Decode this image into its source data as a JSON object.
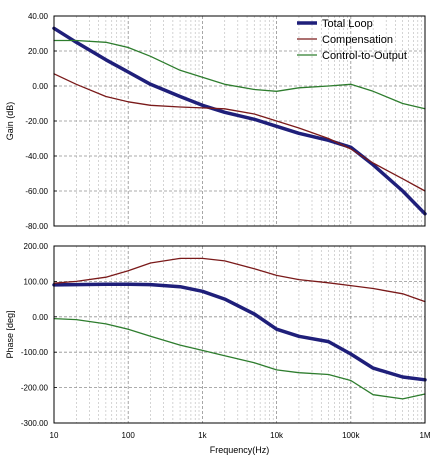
{
  "chart_data": [
    {
      "type": "line",
      "panel": "gain",
      "ylabel": "Gain (dB)",
      "xscale": "log",
      "xlim": [
        10,
        1000000
      ],
      "ylim": [
        -80,
        40
      ],
      "grid": true,
      "legend": "top-right",
      "ytick_labels": [
        "40.00",
        "20.00",
        "0.00",
        "-20.00",
        "-40.00",
        "-60.00",
        "-80.00"
      ],
      "ytick_values": [
        40,
        20,
        0,
        -20,
        -40,
        -60,
        -80
      ],
      "series": [
        {
          "name": "Total Loop",
          "color": "#1f1f7a",
          "x": [
            10,
            20,
            50,
            100,
            200,
            500,
            1000,
            2000,
            5000,
            10000,
            20000,
            50000,
            100000,
            200000,
            500000,
            1000000
          ],
          "y": [
            33,
            25,
            15,
            8,
            1,
            -6,
            -11,
            -15,
            -19,
            -23,
            -27,
            -31,
            -35,
            -45,
            -60,
            -73
          ]
        },
        {
          "name": "Compensation",
          "color": "#7a1a1a",
          "x": [
            10,
            20,
            50,
            100,
            200,
            500,
            1000,
            2000,
            5000,
            10000,
            20000,
            50000,
            100000,
            200000,
            500000,
            1000000
          ],
          "y": [
            7,
            1,
            -6,
            -9,
            -11,
            -12,
            -12.5,
            -13,
            -16,
            -20,
            -24,
            -30,
            -36,
            -44,
            -53,
            -60
          ]
        },
        {
          "name": "Control-to-Output",
          "color": "#2e7d2e",
          "x": [
            10,
            20,
            50,
            100,
            200,
            500,
            1000,
            2000,
            5000,
            10000,
            20000,
            50000,
            100000,
            200000,
            500000,
            1000000
          ],
          "y": [
            26,
            26,
            25,
            22,
            17,
            9,
            5,
            1,
            -2,
            -3,
            -1,
            0,
            1,
            -3,
            -10,
            -13
          ]
        }
      ]
    },
    {
      "type": "line",
      "panel": "phase",
      "xlabel": "Frequency(Hz)",
      "ylabel": "Phase [deg]",
      "xscale": "log",
      "xlim": [
        10,
        1000000
      ],
      "ylim": [
        -300,
        200
      ],
      "grid": true,
      "xtick_labels": [
        "10",
        "100",
        "1k",
        "10k",
        "100k",
        "1M"
      ],
      "xtick_values": [
        10,
        100,
        1000,
        10000,
        100000,
        1000000
      ],
      "ytick_labels": [
        "200.00",
        "100.00",
        "0.00",
        "-100.00",
        "-200.00",
        "-300.00"
      ],
      "ytick_values": [
        200,
        100,
        0,
        -100,
        -200,
        -300
      ],
      "series": [
        {
          "name": "Total Loop",
          "color": "#1f1f7a",
          "x": [
            10,
            20,
            50,
            100,
            200,
            500,
            1000,
            2000,
            5000,
            10000,
            20000,
            50000,
            100000,
            200000,
            500000,
            1000000
          ],
          "y": [
            90,
            91,
            92,
            92,
            91,
            85,
            72,
            50,
            8,
            -35,
            -55,
            -70,
            -105,
            -145,
            -170,
            -178
          ]
        },
        {
          "name": "Compensation",
          "color": "#7a1a1a",
          "x": [
            10,
            20,
            50,
            100,
            200,
            500,
            1000,
            2000,
            5000,
            10000,
            20000,
            50000,
            100000,
            200000,
            500000,
            1000000
          ],
          "y": [
            95,
            100,
            112,
            130,
            152,
            165,
            165,
            158,
            136,
            117,
            105,
            96,
            88,
            80,
            65,
            43
          ]
        },
        {
          "name": "Control-to-Output",
          "color": "#2e7d2e",
          "x": [
            10,
            20,
            50,
            100,
            200,
            500,
            1000,
            2000,
            5000,
            10000,
            20000,
            50000,
            100000,
            200000,
            500000,
            1000000
          ],
          "y": [
            -5,
            -8,
            -20,
            -35,
            -55,
            -80,
            -95,
            -110,
            -130,
            -150,
            -158,
            -163,
            -180,
            -220,
            -232,
            -218
          ]
        }
      ]
    }
  ]
}
